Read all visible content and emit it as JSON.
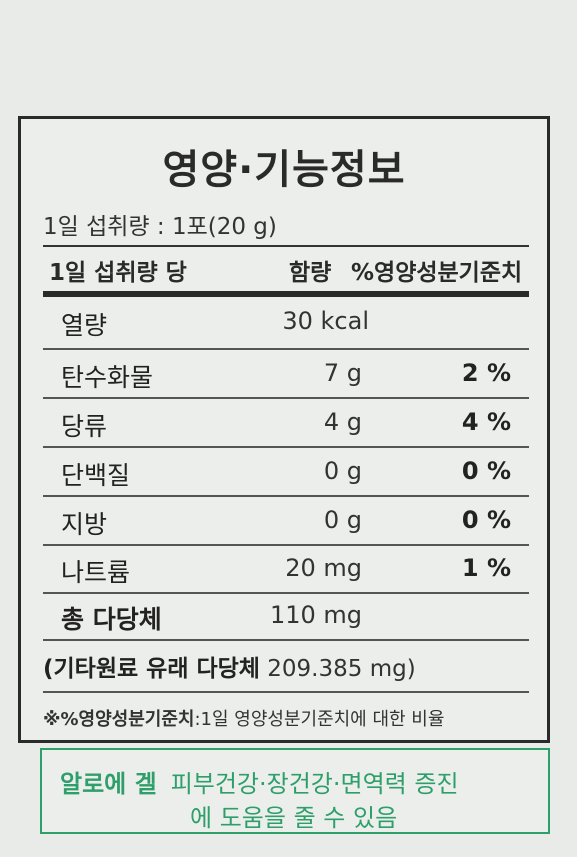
{
  "title": "영양·기능정보",
  "serving_size": "1일 섭취량 : 1포(20 g)",
  "header": {
    "col1": "1일 섭취량 당",
    "col2": "함량",
    "col3": "%영양성분기준치"
  },
  "rows": [
    {
      "name": "열량",
      "amount": "30 kcal",
      "percent": ""
    },
    {
      "name": "탄수화물",
      "amount": "7 g",
      "percent": "2 %"
    },
    {
      "name": "당류",
      "amount": "4 g",
      "percent": "4 %"
    },
    {
      "name": "단백질",
      "amount": "0 g",
      "percent": "0 %"
    },
    {
      "name": "지방",
      "amount": "0 g",
      "percent": "0 %"
    },
    {
      "name": "나트륨",
      "amount": "20 mg",
      "percent": "1 %"
    },
    {
      "name": "총 다당체",
      "amount": "110 mg",
      "percent": ""
    }
  ],
  "sub_line": {
    "open": "(기타원료 유래 다당체",
    "value": "209.385 mg)"
  },
  "footnote": {
    "label": "※%영양성분기준치",
    "text": ":1일 영양성분기준치에 대한 비율"
  },
  "claim": {
    "ingredient": "알로에 겔",
    "line1": "피부건강·장건강·면역력 증진",
    "line2": "에 도움을 줄 수 있음"
  },
  "colors": {
    "border": "#2a2a2a",
    "claim_green": "#2e9f6a"
  }
}
